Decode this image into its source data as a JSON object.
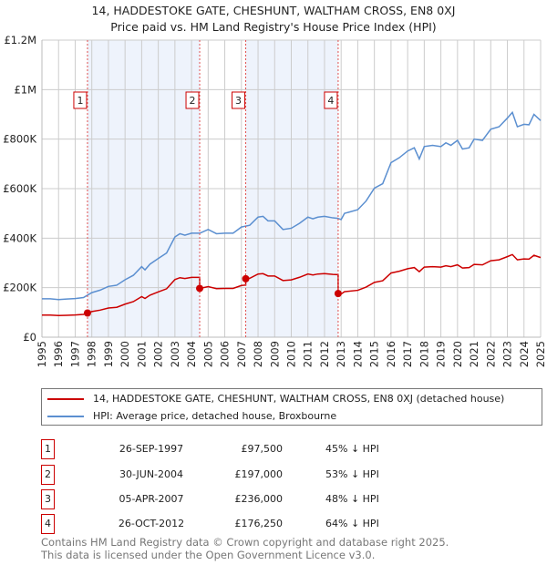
{
  "chart_data": {
    "type": "line",
    "title": "14, HADDESTOKE GATE, CHESHUNT, WALTHAM CROSS, EN8 0XJ",
    "subtitle": "Price paid vs. HM Land Registry's House Price Index (HPI)",
    "xlim": [
      1995,
      2025
    ],
    "ylim": [
      0,
      1200000
    ],
    "yticks": [
      {
        "v": 0,
        "label": "£0"
      },
      {
        "v": 200000,
        "label": "£200K"
      },
      {
        "v": 400000,
        "label": "£400K"
      },
      {
        "v": 600000,
        "label": "£600K"
      },
      {
        "v": 800000,
        "label": "£800K"
      },
      {
        "v": 1000000,
        "label": "£1M"
      },
      {
        "v": 1200000,
        "label": "£1.2M"
      }
    ],
    "xticks": [
      "1995",
      "1996",
      "1997",
      "1998",
      "1999",
      "2000",
      "2001",
      "2002",
      "2003",
      "2004",
      "2005",
      "2006",
      "2007",
      "2008",
      "2009",
      "2010",
      "2011",
      "2012",
      "2013",
      "2014",
      "2015",
      "2016",
      "2017",
      "2018",
      "2019",
      "2020",
      "2021",
      "2022",
      "2023",
      "2024",
      "2025"
    ],
    "colors": {
      "property": "#cc0000",
      "hpi": "#5b8fd0",
      "shade": "#eef3fc"
    },
    "hpi": {
      "name": "HPI: Average price, detached house, Broxbourne",
      "x": [
        1995,
        1995.5,
        1996,
        1996.5,
        1997,
        1997.5,
        1998,
        1998.5,
        1999,
        1999.5,
        2000,
        2000.5,
        2001,
        2001.2,
        2001.5,
        2002,
        2002.5,
        2003,
        2003.3,
        2003.6,
        2004,
        2004.5,
        2005,
        2005.5,
        2006,
        2006.5,
        2007,
        2007.5,
        2008,
        2008.3,
        2008.6,
        2009,
        2009.5,
        2010,
        2010.5,
        2011,
        2011.3,
        2011.6,
        2012,
        2012.5,
        2012.8,
        2013,
        2013.2,
        2014,
        2014.5,
        2015,
        2015.5,
        2016,
        2016.5,
        2017,
        2017.4,
        2017.7,
        2018,
        2018.5,
        2019,
        2019.3,
        2019.6,
        2020,
        2020.3,
        2020.7,
        2021,
        2021.5,
        2022,
        2022.5,
        2023,
        2023.3,
        2023.6,
        2024,
        2024.3,
        2024.6,
        2025
      ],
      "y": [
        155000,
        155000,
        152000,
        154000,
        156000,
        160000,
        180000,
        190000,
        205000,
        210000,
        232000,
        250000,
        285000,
        272000,
        295000,
        318000,
        340000,
        405000,
        418000,
        412000,
        420000,
        420000,
        435000,
        418000,
        420000,
        420000,
        445000,
        452000,
        485000,
        488000,
        470000,
        470000,
        435000,
        440000,
        460000,
        485000,
        478000,
        485000,
        488000,
        482000,
        480000,
        475000,
        500000,
        515000,
        550000,
        602000,
        620000,
        705000,
        725000,
        752000,
        765000,
        720000,
        770000,
        775000,
        770000,
        785000,
        775000,
        795000,
        760000,
        765000,
        800000,
        795000,
        840000,
        850000,
        885000,
        908000,
        850000,
        860000,
        858000,
        900000,
        875000
      ]
    },
    "property": {
      "name": "14, HADDESTOKE GATE, CHESHUNT, WALTHAM CROSS, EN8 0XJ (detached house)"
    },
    "sales": [
      {
        "n": "1",
        "x": 1997.74,
        "date": "26-SEP-1997",
        "price": 97500,
        "price_label": "£97,500",
        "hpi_label": "45% ↓ HPI"
      },
      {
        "n": "2",
        "x": 2004.49,
        "date": "30-JUN-2004",
        "price": 197000,
        "price_label": "£197,000",
        "hpi_label": "53% ↓ HPI"
      },
      {
        "n": "3",
        "x": 2007.26,
        "date": "05-APR-2007",
        "price": 236000,
        "price_label": "£236,000",
        "hpi_label": "48% ↓ HPI"
      },
      {
        "n": "4",
        "x": 2012.82,
        "date": "26-OCT-2012",
        "price": 176250,
        "price_label": "£176,250",
        "hpi_label": "64% ↓ HPI"
      }
    ]
  },
  "footer": {
    "line1": "Contains HM Land Registry data © Crown copyright and database right 2025.",
    "line2": "This data is licensed under the Open Government Licence v3.0."
  }
}
